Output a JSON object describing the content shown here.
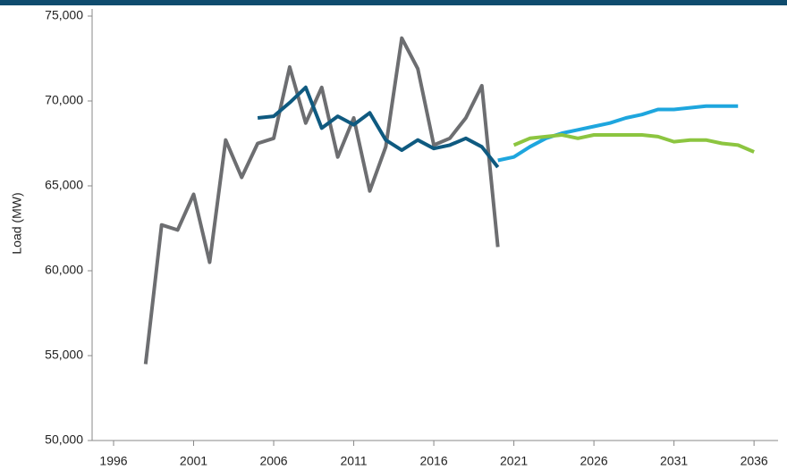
{
  "chart_data": {
    "type": "line",
    "y_label": "Load (MW)",
    "xlim": [
      1994.66,
      2037.5
    ],
    "xticks": [
      1996,
      2001,
      2006,
      2011,
      2016,
      2021,
      2026,
      2031,
      2036
    ],
    "ylim": [
      50000,
      75000
    ],
    "yticks": [
      {
        "value": 50000,
        "label": "50,000"
      },
      {
        "value": 55000,
        "label": "55,000"
      },
      {
        "value": 60000,
        "label": "60,000"
      },
      {
        "value": 65000,
        "label": "65,000"
      },
      {
        "value": 70000,
        "label": "70,000"
      },
      {
        "value": 75000,
        "label": "75,000"
      }
    ],
    "series": [
      {
        "color": "#6d6e71",
        "x": [
          1998,
          1999,
          2000,
          2001,
          2002,
          2003,
          2004,
          2005,
          2006,
          2007,
          2008,
          2009,
          2010,
          2011,
          2012,
          2013,
          2014,
          2015,
          2016,
          2017,
          2018,
          2019,
          2020
        ],
        "values": [
          54500,
          62700,
          62400,
          64500,
          60500,
          67700,
          65500,
          67500,
          67800,
          72000,
          68700,
          70800,
          66700,
          69000,
          64700,
          67300,
          73700,
          71900,
          67400,
          67800,
          69000,
          70900,
          61400
        ]
      },
      {
        "color": "#0f5a80",
        "x": [
          2005,
          2006,
          2007,
          2008,
          2009,
          2010,
          2011,
          2012,
          2013,
          2014,
          2015,
          2016,
          2017,
          2018,
          2019,
          2020
        ],
        "values": [
          69000,
          69100,
          69900,
          70800,
          68400,
          69100,
          68600,
          69300,
          67700,
          67100,
          67700,
          67200,
          67400,
          67800,
          67300,
          66100
        ]
      },
      {
        "color": "#1ea6de",
        "x": [
          2020,
          2021,
          2022,
          2023,
          2024,
          2025,
          2026,
          2027,
          2028,
          2029,
          2030,
          2031,
          2032,
          2033,
          2034,
          2035
        ],
        "values": [
          66500,
          66700,
          67300,
          67800,
          68100,
          68300,
          68500,
          68700,
          69000,
          69200,
          69500,
          69500,
          69600,
          69700,
          69700,
          69700
        ]
      },
      {
        "color": "#8cc540",
        "x": [
          2021,
          2022,
          2023,
          2024,
          2025,
          2026,
          2027,
          2028,
          2029,
          2030,
          2031,
          2032,
          2033,
          2034,
          2035,
          2036
        ],
        "values": [
          67400,
          67800,
          67900,
          68000,
          67800,
          68000,
          68000,
          68000,
          68000,
          67900,
          67600,
          67700,
          67700,
          67500,
          67400,
          67000
        ]
      }
    ]
  }
}
